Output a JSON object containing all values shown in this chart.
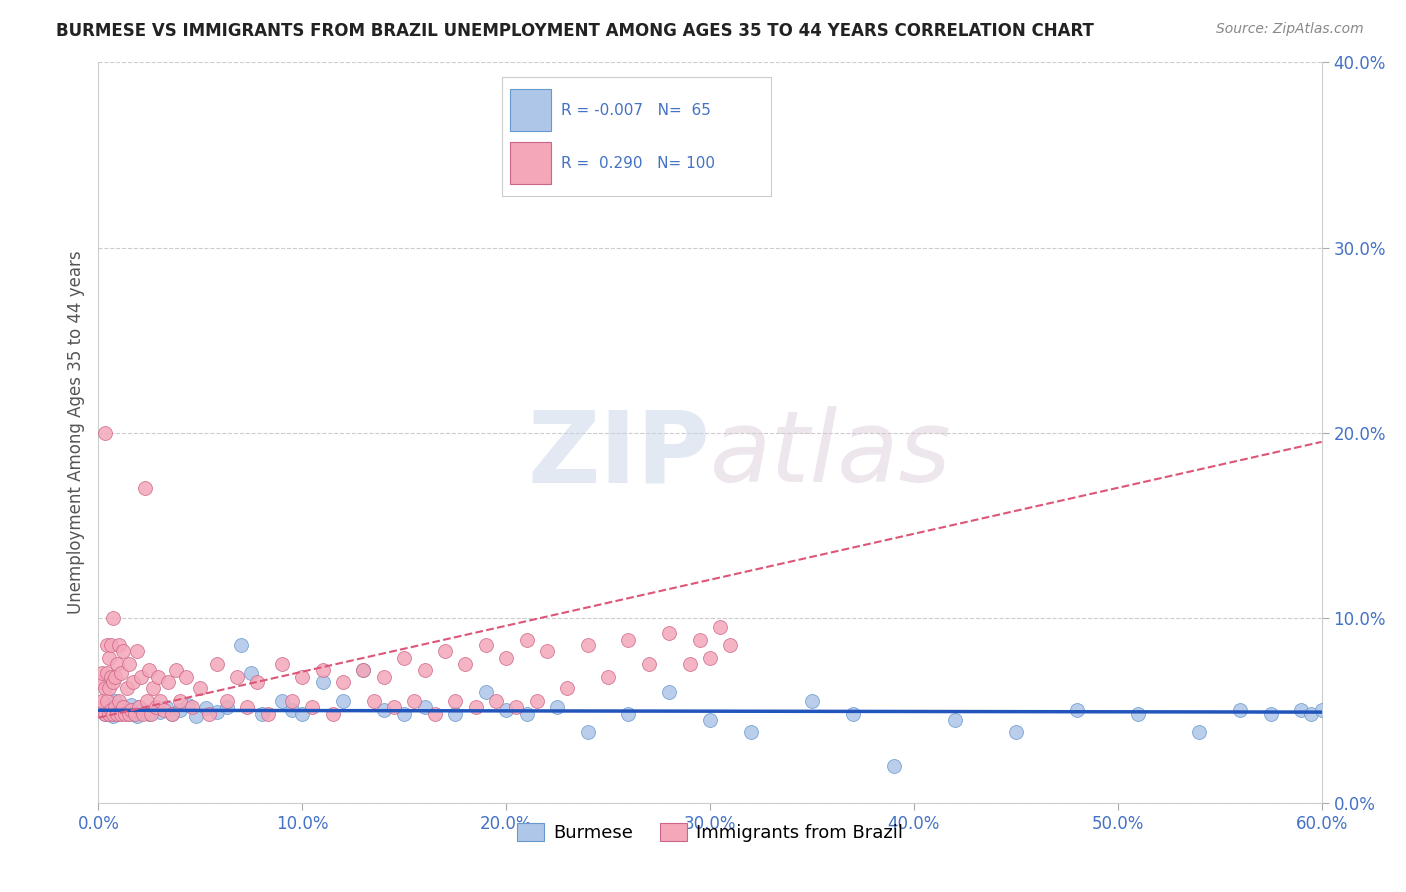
{
  "title": "BURMESE VS IMMIGRANTS FROM BRAZIL UNEMPLOYMENT AMONG AGES 35 TO 44 YEARS CORRELATION CHART",
  "source": "Source: ZipAtlas.com",
  "xlim": [
    0.0,
    0.6
  ],
  "ylim": [
    0.0,
    0.4
  ],
  "watermark_zip": "ZIP",
  "watermark_atlas": "atlas",
  "legend_R1": "-0.007",
  "legend_N1": "65",
  "legend_R2": "0.290",
  "legend_N2": "100",
  "legend_label1": "Burmese",
  "legend_label2": "Immigrants from Brazil",
  "color_burmese": "#aec6e8",
  "color_burmese_edge": "#6699cc",
  "color_brazil": "#f4a7b9",
  "color_brazil_edge": "#cc6688",
  "color_burmese_line": "#2255bb",
  "color_brazil_line": "#dd5577",
  "color_grid": "#cccccc",
  "color_tick": "#4472c4",
  "color_ylabel": "#555555",
  "color_title": "#222222",
  "color_source": "#888888",
  "burmese_x": [
    0.001,
    0.002,
    0.003,
    0.004,
    0.005,
    0.006,
    0.007,
    0.008,
    0.009,
    0.01,
    0.011,
    0.012,
    0.013,
    0.015,
    0.016,
    0.017,
    0.019,
    0.02,
    0.022,
    0.025,
    0.028,
    0.03,
    0.033,
    0.036,
    0.04,
    0.044,
    0.048,
    0.053,
    0.058,
    0.063,
    0.07,
    0.075,
    0.08,
    0.09,
    0.095,
    0.1,
    0.11,
    0.12,
    0.13,
    0.14,
    0.15,
    0.16,
    0.175,
    0.19,
    0.2,
    0.21,
    0.225,
    0.24,
    0.26,
    0.28,
    0.3,
    0.32,
    0.35,
    0.37,
    0.39,
    0.42,
    0.45,
    0.48,
    0.51,
    0.54,
    0.56,
    0.575,
    0.59,
    0.595,
    0.6
  ],
  "burmese_y": [
    0.05,
    0.052,
    0.048,
    0.051,
    0.049,
    0.053,
    0.047,
    0.055,
    0.05,
    0.048,
    0.052,
    0.049,
    0.051,
    0.048,
    0.053,
    0.05,
    0.047,
    0.052,
    0.05,
    0.048,
    0.051,
    0.049,
    0.052,
    0.048,
    0.05,
    0.053,
    0.047,
    0.051,
    0.049,
    0.052,
    0.085,
    0.07,
    0.048,
    0.055,
    0.05,
    0.048,
    0.065,
    0.055,
    0.072,
    0.05,
    0.048,
    0.052,
    0.048,
    0.06,
    0.05,
    0.048,
    0.052,
    0.038,
    0.048,
    0.06,
    0.045,
    0.038,
    0.055,
    0.048,
    0.02,
    0.045,
    0.038,
    0.05,
    0.048,
    0.038,
    0.05,
    0.048,
    0.05,
    0.048,
    0.05
  ],
  "brazil_x": [
    0.001,
    0.001,
    0.002,
    0.002,
    0.003,
    0.003,
    0.003,
    0.004,
    0.004,
    0.004,
    0.005,
    0.005,
    0.005,
    0.006,
    0.006,
    0.006,
    0.007,
    0.007,
    0.007,
    0.008,
    0.008,
    0.009,
    0.009,
    0.01,
    0.01,
    0.011,
    0.011,
    0.012,
    0.012,
    0.013,
    0.014,
    0.015,
    0.015,
    0.016,
    0.017,
    0.018,
    0.019,
    0.02,
    0.021,
    0.022,
    0.023,
    0.024,
    0.025,
    0.026,
    0.027,
    0.028,
    0.029,
    0.03,
    0.032,
    0.034,
    0.036,
    0.038,
    0.04,
    0.043,
    0.046,
    0.05,
    0.054,
    0.058,
    0.063,
    0.068,
    0.073,
    0.078,
    0.083,
    0.09,
    0.095,
    0.1,
    0.105,
    0.11,
    0.115,
    0.12,
    0.13,
    0.135,
    0.14,
    0.145,
    0.15,
    0.155,
    0.16,
    0.165,
    0.17,
    0.175,
    0.18,
    0.185,
    0.19,
    0.195,
    0.2,
    0.205,
    0.21,
    0.215,
    0.22,
    0.23,
    0.24,
    0.25,
    0.26,
    0.27,
    0.28,
    0.29,
    0.295,
    0.3,
    0.305,
    0.31
  ],
  "brazil_y": [
    0.05,
    0.065,
    0.055,
    0.07,
    0.048,
    0.062,
    0.2,
    0.055,
    0.07,
    0.085,
    0.048,
    0.062,
    0.078,
    0.05,
    0.068,
    0.085,
    0.048,
    0.065,
    0.1,
    0.052,
    0.068,
    0.048,
    0.075,
    0.055,
    0.085,
    0.048,
    0.07,
    0.052,
    0.082,
    0.048,
    0.062,
    0.048,
    0.075,
    0.05,
    0.065,
    0.048,
    0.082,
    0.052,
    0.068,
    0.048,
    0.17,
    0.055,
    0.072,
    0.048,
    0.062,
    0.052,
    0.068,
    0.055,
    0.05,
    0.065,
    0.048,
    0.072,
    0.055,
    0.068,
    0.052,
    0.062,
    0.048,
    0.075,
    0.055,
    0.068,
    0.052,
    0.065,
    0.048,
    0.075,
    0.055,
    0.068,
    0.052,
    0.072,
    0.048,
    0.065,
    0.072,
    0.055,
    0.068,
    0.052,
    0.078,
    0.055,
    0.072,
    0.048,
    0.082,
    0.055,
    0.075,
    0.052,
    0.085,
    0.055,
    0.078,
    0.052,
    0.088,
    0.055,
    0.082,
    0.062,
    0.085,
    0.068,
    0.088,
    0.075,
    0.092,
    0.075,
    0.088,
    0.078,
    0.095,
    0.085
  ],
  "burmese_line_x": [
    0.0,
    0.6
  ],
  "burmese_line_y": [
    0.05,
    0.049
  ],
  "brazil_line_x": [
    0.0,
    0.6
  ],
  "brazil_line_y": [
    0.046,
    0.195
  ]
}
